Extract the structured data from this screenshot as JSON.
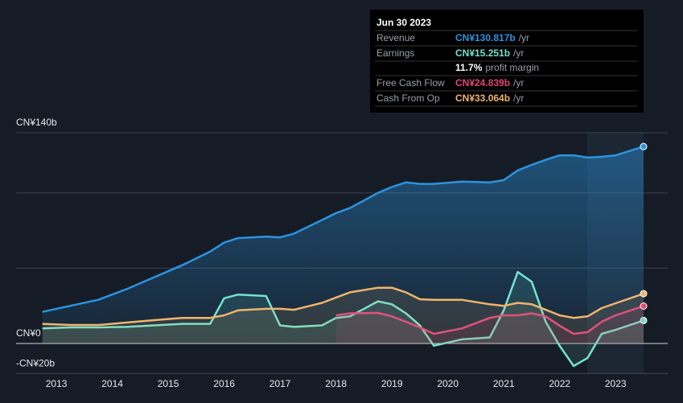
{
  "chart_data": {
    "type": "line",
    "x": [
      2012.75,
      2013.25,
      2013.75,
      2014.25,
      2014.75,
      2015.25,
      2015.75,
      2016.0,
      2016.25,
      2016.75,
      2017.0,
      2017.25,
      2017.75,
      2018.0,
      2018.25,
      2018.75,
      2019.0,
      2019.25,
      2019.5,
      2019.75,
      2020.25,
      2020.75,
      2021.0,
      2021.25,
      2021.5,
      2021.75,
      2022.0,
      2022.25,
      2022.5,
      2022.75,
      2023.0,
      2023.5
    ],
    "series": [
      {
        "name": "Revenue",
        "color": "#2b94e0",
        "values": [
          21,
          25,
          29,
          36,
          44,
          52,
          61,
          67,
          70,
          71,
          70.5,
          73,
          82,
          86.6,
          90,
          100,
          104,
          107,
          106,
          106,
          107.5,
          107,
          108.5,
          115,
          118.7,
          122,
          125,
          125,
          123.5,
          124,
          125,
          130.817
        ]
      },
      {
        "name": "Earnings",
        "color": "#74e3cd",
        "values": [
          10,
          10.7,
          10.7,
          11,
          12,
          13,
          13,
          30,
          32.5,
          31.5,
          12,
          11,
          12,
          17,
          18,
          28,
          26,
          20,
          12,
          -1.5,
          2.7,
          4,
          22,
          47.5,
          41,
          14.4,
          -1.6,
          -15,
          -9.6,
          6.4,
          9,
          15.251
        ]
      },
      {
        "name": "Free Cash Flow",
        "color": "#e0457b",
        "values": [
          null,
          null,
          null,
          null,
          null,
          null,
          null,
          null,
          null,
          null,
          null,
          null,
          null,
          18.7,
          20,
          20.3,
          18,
          14.4,
          10.7,
          6.4,
          10,
          17,
          18.7,
          18.7,
          20,
          18,
          11.8,
          6.4,
          7.5,
          14.4,
          18.7,
          24.839
        ]
      },
      {
        "name": "Cash From Op",
        "color": "#f0b46c",
        "values": [
          13,
          12.3,
          12.3,
          13.9,
          15.5,
          17,
          17,
          18.7,
          22,
          23,
          23,
          22.4,
          27,
          30.5,
          34,
          37,
          37,
          34,
          29.4,
          29,
          29,
          26,
          25,
          27,
          26,
          22.4,
          18.7,
          17,
          18,
          23.5,
          26.7,
          33.064
        ]
      }
    ],
    "xlim": [
      2012.74,
      2023.5
    ],
    "xticks": [
      2013,
      2014,
      2015,
      2016,
      2017,
      2018,
      2019,
      2020,
      2021,
      2022,
      2023
    ],
    "ylim": [
      -20,
      140
    ],
    "yticks": [
      {
        "value": -20,
        "label": "-CN¥20b"
      },
      {
        "value": 0,
        "label": "CN¥0"
      },
      {
        "value": 140,
        "label": "CN¥140b"
      }
    ],
    "gridlines": [
      50,
      100
    ],
    "tooltip": {
      "title": "Jun 30 2023",
      "rows": [
        {
          "label": "Revenue",
          "value": "CN¥130.817b",
          "unit": "/yr"
        },
        {
          "label": "Earnings",
          "value": "CN¥15.251b",
          "unit": "/yr"
        },
        {
          "label": "Free Cash Flow",
          "value": "CN¥24.839b",
          "unit": "/yr"
        },
        {
          "label": "Cash From Op",
          "value": "CN¥33.064b",
          "unit": "/yr"
        }
      ],
      "margin": "11.7%",
      "margin_label": "profit margin"
    }
  }
}
